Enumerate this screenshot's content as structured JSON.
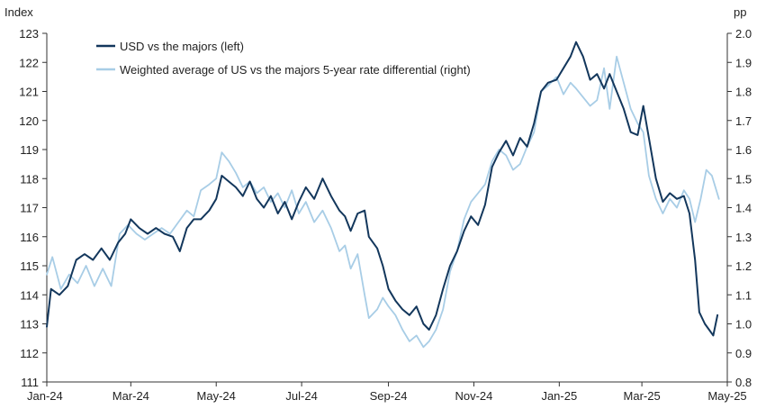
{
  "chart_data": {
    "type": "line",
    "left_axis": {
      "unit": "Index",
      "range": [
        111,
        123
      ],
      "ticks": [
        111,
        112,
        113,
        114,
        115,
        116,
        117,
        118,
        119,
        120,
        121,
        122,
        123
      ],
      "tick_labels": [
        "111",
        "112",
        "113",
        "114",
        "115",
        "116",
        "117",
        "118",
        "119",
        "120",
        "121",
        "122",
        "123"
      ]
    },
    "right_axis": {
      "unit": "pp",
      "range": [
        0.8,
        2.0
      ],
      "ticks": [
        0.8,
        0.9,
        1.0,
        1.1,
        1.2,
        1.3,
        1.4,
        1.5,
        1.6,
        1.7,
        1.8,
        1.9,
        2.0
      ],
      "tick_labels": [
        "0.8",
        "0.9",
        "1.0",
        "1.1",
        "1.2",
        "1.3",
        "1.4",
        "1.5",
        "1.6",
        "1.7",
        "1.8",
        "1.9",
        "2.0"
      ]
    },
    "x_axis": {
      "range": [
        "2024-01-01",
        "2025-05-01"
      ],
      "tick_dates": [
        "2024-01-01",
        "2024-03-01",
        "2024-05-01",
        "2024-07-01",
        "2024-09-01",
        "2024-11-01",
        "2025-01-01",
        "2025-03-01",
        "2025-05-01"
      ],
      "tick_labels": [
        "Jan-24",
        "Mar-24",
        "May-24",
        "Jul-24",
        "Sep-24",
        "Nov-24",
        "Jan-25",
        "Mar-25",
        "May-25"
      ]
    },
    "legend_position": "top-left",
    "grid": false,
    "series": [
      {
        "name": "USD vs the majors (left)",
        "axis": "left",
        "color": "#13375c",
        "points": [
          [
            "2024-01-01",
            112.9
          ],
          [
            "2024-01-04",
            114.2
          ],
          [
            "2024-01-10",
            114.0
          ],
          [
            "2024-01-16",
            114.3
          ],
          [
            "2024-01-22",
            115.2
          ],
          [
            "2024-01-28",
            115.4
          ],
          [
            "2024-02-03",
            115.2
          ],
          [
            "2024-02-09",
            115.6
          ],
          [
            "2024-02-15",
            115.2
          ],
          [
            "2024-02-21",
            115.8
          ],
          [
            "2024-02-26",
            116.1
          ],
          [
            "2024-03-01",
            116.6
          ],
          [
            "2024-03-07",
            116.3
          ],
          [
            "2024-03-13",
            116.1
          ],
          [
            "2024-03-19",
            116.3
          ],
          [
            "2024-03-25",
            116.1
          ],
          [
            "2024-03-31",
            116.0
          ],
          [
            "2024-04-05",
            115.5
          ],
          [
            "2024-04-10",
            116.3
          ],
          [
            "2024-04-15",
            116.6
          ],
          [
            "2024-04-20",
            116.6
          ],
          [
            "2024-04-26",
            116.9
          ],
          [
            "2024-05-01",
            117.3
          ],
          [
            "2024-05-05",
            118.1
          ],
          [
            "2024-05-10",
            117.9
          ],
          [
            "2024-05-15",
            117.7
          ],
          [
            "2024-05-20",
            117.4
          ],
          [
            "2024-05-25",
            117.9
          ],
          [
            "2024-05-30",
            117.3
          ],
          [
            "2024-06-04",
            117.0
          ],
          [
            "2024-06-09",
            117.4
          ],
          [
            "2024-06-14",
            116.8
          ],
          [
            "2024-06-19",
            117.2
          ],
          [
            "2024-06-24",
            116.6
          ],
          [
            "2024-06-29",
            117.2
          ],
          [
            "2024-07-04",
            117.7
          ],
          [
            "2024-07-10",
            117.3
          ],
          [
            "2024-07-16",
            118.0
          ],
          [
            "2024-07-22",
            117.4
          ],
          [
            "2024-07-28",
            116.9
          ],
          [
            "2024-08-01",
            116.7
          ],
          [
            "2024-08-05",
            116.2
          ],
          [
            "2024-08-10",
            116.8
          ],
          [
            "2024-08-15",
            116.9
          ],
          [
            "2024-08-18",
            116.0
          ],
          [
            "2024-08-24",
            115.6
          ],
          [
            "2024-08-28",
            115.0
          ],
          [
            "2024-09-01",
            114.2
          ],
          [
            "2024-09-06",
            113.8
          ],
          [
            "2024-09-11",
            113.5
          ],
          [
            "2024-09-16",
            113.3
          ],
          [
            "2024-09-21",
            113.6
          ],
          [
            "2024-09-26",
            113.0
          ],
          [
            "2024-09-30",
            112.8
          ],
          [
            "2024-10-05",
            113.3
          ],
          [
            "2024-10-10",
            114.2
          ],
          [
            "2024-10-15",
            115.0
          ],
          [
            "2024-10-20",
            115.5
          ],
          [
            "2024-10-25",
            116.2
          ],
          [
            "2024-10-30",
            116.7
          ],
          [
            "2024-11-04",
            116.4
          ],
          [
            "2024-11-09",
            117.1
          ],
          [
            "2024-11-14",
            118.4
          ],
          [
            "2024-11-19",
            118.9
          ],
          [
            "2024-11-24",
            119.3
          ],
          [
            "2024-11-29",
            118.8
          ],
          [
            "2024-12-04",
            119.4
          ],
          [
            "2024-12-09",
            119.1
          ],
          [
            "2024-12-14",
            119.9
          ],
          [
            "2024-12-19",
            121.0
          ],
          [
            "2024-12-24",
            121.3
          ],
          [
            "2024-12-30",
            121.4
          ],
          [
            "2025-01-04",
            121.8
          ],
          [
            "2025-01-09",
            122.2
          ],
          [
            "2025-01-13",
            122.7
          ],
          [
            "2025-01-18",
            122.2
          ],
          [
            "2025-01-23",
            121.4
          ],
          [
            "2025-01-28",
            121.6
          ],
          [
            "2025-02-02",
            121.1
          ],
          [
            "2025-02-06",
            121.6
          ],
          [
            "2025-02-11",
            121.0
          ],
          [
            "2025-02-16",
            120.4
          ],
          [
            "2025-02-21",
            119.6
          ],
          [
            "2025-02-26",
            119.5
          ],
          [
            "2025-03-02",
            120.5
          ],
          [
            "2025-03-06",
            119.4
          ],
          [
            "2025-03-11",
            118.0
          ],
          [
            "2025-03-16",
            117.2
          ],
          [
            "2025-03-21",
            117.5
          ],
          [
            "2025-03-26",
            117.3
          ],
          [
            "2025-03-31",
            117.4
          ],
          [
            "2025-04-04",
            116.8
          ],
          [
            "2025-04-08",
            115.2
          ],
          [
            "2025-04-11",
            113.4
          ],
          [
            "2025-04-15",
            113.0
          ],
          [
            "2025-04-18",
            112.8
          ],
          [
            "2025-04-21",
            112.6
          ],
          [
            "2025-04-24",
            113.3
          ]
        ]
      },
      {
        "name": "Weighted average of US vs the majors 5-year rate differential (right)",
        "axis": "right",
        "color": "#a8cde6",
        "points": [
          [
            "2024-01-01",
            1.17
          ],
          [
            "2024-01-05",
            1.23
          ],
          [
            "2024-01-11",
            1.12
          ],
          [
            "2024-01-17",
            1.17
          ],
          [
            "2024-01-23",
            1.14
          ],
          [
            "2024-01-29",
            1.2
          ],
          [
            "2024-02-04",
            1.13
          ],
          [
            "2024-02-10",
            1.19
          ],
          [
            "2024-02-16",
            1.13
          ],
          [
            "2024-02-22",
            1.31
          ],
          [
            "2024-02-28",
            1.34
          ],
          [
            "2024-03-05",
            1.31
          ],
          [
            "2024-03-11",
            1.29
          ],
          [
            "2024-03-17",
            1.31
          ],
          [
            "2024-03-23",
            1.33
          ],
          [
            "2024-03-29",
            1.31
          ],
          [
            "2024-04-04",
            1.35
          ],
          [
            "2024-04-10",
            1.39
          ],
          [
            "2024-04-15",
            1.37
          ],
          [
            "2024-04-20",
            1.46
          ],
          [
            "2024-04-26",
            1.48
          ],
          [
            "2024-05-01",
            1.5
          ],
          [
            "2024-05-05",
            1.59
          ],
          [
            "2024-05-10",
            1.56
          ],
          [
            "2024-05-15",
            1.52
          ],
          [
            "2024-05-20",
            1.47
          ],
          [
            "2024-05-25",
            1.49
          ],
          [
            "2024-05-30",
            1.45
          ],
          [
            "2024-06-04",
            1.47
          ],
          [
            "2024-06-09",
            1.42
          ],
          [
            "2024-06-14",
            1.45
          ],
          [
            "2024-06-19",
            1.4
          ],
          [
            "2024-06-24",
            1.46
          ],
          [
            "2024-06-29",
            1.38
          ],
          [
            "2024-07-04",
            1.42
          ],
          [
            "2024-07-10",
            1.35
          ],
          [
            "2024-07-16",
            1.39
          ],
          [
            "2024-07-22",
            1.33
          ],
          [
            "2024-07-28",
            1.25
          ],
          [
            "2024-08-01",
            1.27
          ],
          [
            "2024-08-05",
            1.19
          ],
          [
            "2024-08-10",
            1.24
          ],
          [
            "2024-08-15",
            1.1
          ],
          [
            "2024-08-18",
            1.02
          ],
          [
            "2024-08-24",
            1.05
          ],
          [
            "2024-08-28",
            1.09
          ],
          [
            "2024-09-01",
            1.06
          ],
          [
            "2024-09-06",
            1.03
          ],
          [
            "2024-09-11",
            0.98
          ],
          [
            "2024-09-16",
            0.94
          ],
          [
            "2024-09-21",
            0.96
          ],
          [
            "2024-09-26",
            0.92
          ],
          [
            "2024-09-30",
            0.94
          ],
          [
            "2024-10-05",
            0.98
          ],
          [
            "2024-10-10",
            1.05
          ],
          [
            "2024-10-15",
            1.18
          ],
          [
            "2024-10-20",
            1.25
          ],
          [
            "2024-10-25",
            1.36
          ],
          [
            "2024-10-30",
            1.42
          ],
          [
            "2024-11-04",
            1.45
          ],
          [
            "2024-11-09",
            1.48
          ],
          [
            "2024-11-14",
            1.56
          ],
          [
            "2024-11-19",
            1.6
          ],
          [
            "2024-11-24",
            1.58
          ],
          [
            "2024-11-29",
            1.53
          ],
          [
            "2024-12-04",
            1.55
          ],
          [
            "2024-12-09",
            1.61
          ],
          [
            "2024-12-14",
            1.66
          ],
          [
            "2024-12-19",
            1.8
          ],
          [
            "2024-12-24",
            1.82
          ],
          [
            "2024-12-30",
            1.85
          ],
          [
            "2025-01-04",
            1.79
          ],
          [
            "2025-01-09",
            1.83
          ],
          [
            "2025-01-13",
            1.81
          ],
          [
            "2025-01-18",
            1.78
          ],
          [
            "2025-01-23",
            1.75
          ],
          [
            "2025-01-28",
            1.77
          ],
          [
            "2025-02-02",
            1.88
          ],
          [
            "2025-02-06",
            1.74
          ],
          [
            "2025-02-11",
            1.92
          ],
          [
            "2025-02-16",
            1.83
          ],
          [
            "2025-02-21",
            1.74
          ],
          [
            "2025-02-26",
            1.69
          ],
          [
            "2025-03-02",
            1.66
          ],
          [
            "2025-03-06",
            1.51
          ],
          [
            "2025-03-11",
            1.43
          ],
          [
            "2025-03-16",
            1.38
          ],
          [
            "2025-03-21",
            1.43
          ],
          [
            "2025-03-26",
            1.4
          ],
          [
            "2025-03-31",
            1.46
          ],
          [
            "2025-04-04",
            1.43
          ],
          [
            "2025-04-08",
            1.35
          ],
          [
            "2025-04-12",
            1.43
          ],
          [
            "2025-04-16",
            1.53
          ],
          [
            "2025-04-20",
            1.51
          ],
          [
            "2025-04-25",
            1.43
          ]
        ]
      }
    ]
  }
}
